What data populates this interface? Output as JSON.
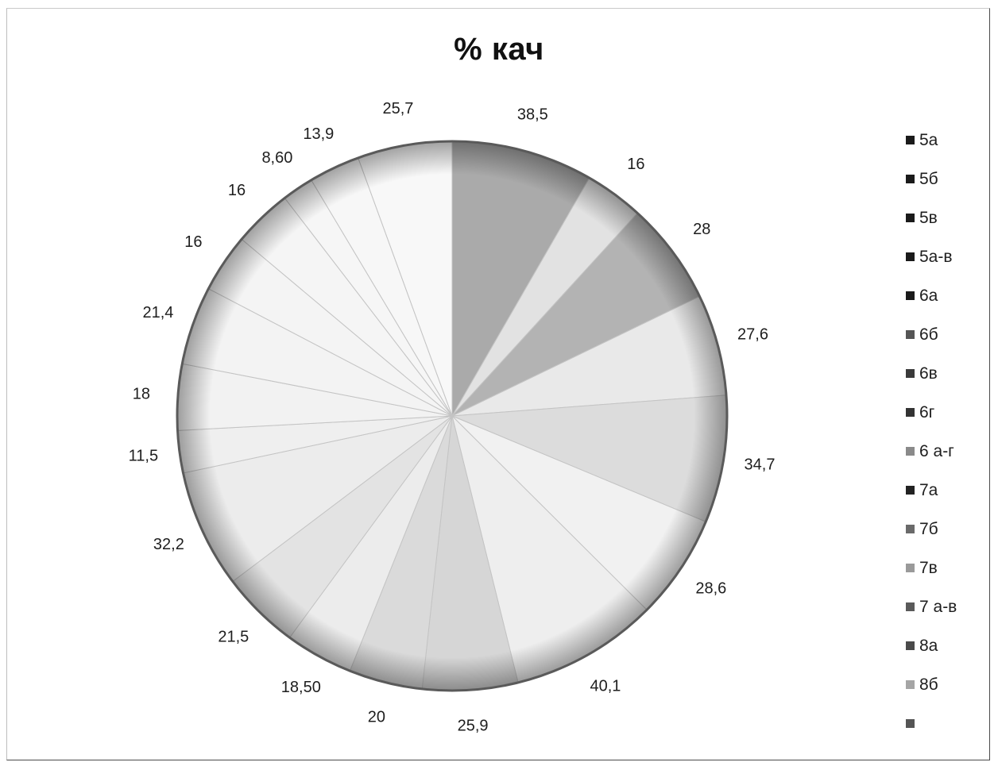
{
  "chart_data": {
    "type": "pie",
    "title": "% кач",
    "start_angle_deg": 0,
    "direction": "clockwise",
    "legend_position": "right",
    "slices": [
      {
        "legend": "5а",
        "label": "38,5",
        "value": 38.5,
        "color": "#aaaaaa"
      },
      {
        "legend": "5б",
        "label": "16",
        "value": 16,
        "color": "#e2e2e2"
      },
      {
        "legend": "5в",
        "label": "28",
        "value": 28,
        "color": "#b3b3b3"
      },
      {
        "legend": "5а-в",
        "label": "27,6",
        "value": 27.6,
        "color": "#e9e9e9"
      },
      {
        "legend": "6а",
        "label": "34,7",
        "value": 34.7,
        "color": "#dcdcdc"
      },
      {
        "legend": "6б",
        "label": "28,6",
        "value": 28.6,
        "color": "#f1f1f1"
      },
      {
        "legend": "6в",
        "label": "40,1",
        "value": 40.1,
        "color": "#eeeeee"
      },
      {
        "legend": "6г",
        "label": "25,9",
        "value": 25.9,
        "color": "#d6d6d6"
      },
      {
        "legend": "6 а-г",
        "label": "20",
        "value": 20,
        "color": "#dadada"
      },
      {
        "legend": "7а",
        "label": "18,50",
        "value": 18.5,
        "color": "#ececec"
      },
      {
        "legend": "7б",
        "label": "21,5",
        "value": 21.5,
        "color": "#e3e3e3"
      },
      {
        "legend": "7в",
        "label": "32,2",
        "value": 32.2,
        "color": "#ececec"
      },
      {
        "legend": "7 а-в",
        "label": "11,5",
        "value": 11.5,
        "color": "#efefef"
      },
      {
        "legend": "8а",
        "label": "18",
        "value": 18,
        "color": "#f2f2f2"
      },
      {
        "legend": "8б",
        "label": "21,4",
        "value": 21.4,
        "color": "#f3f3f3"
      },
      {
        "legend": "",
        "label": "16",
        "value": 16,
        "color": "#f4f4f4"
      },
      {
        "legend": "",
        "label": "16",
        "value": 16,
        "color": "#f5f5f5"
      },
      {
        "legend": "",
        "label": "8,60",
        "value": 8.6,
        "color": "#f6f6f6"
      },
      {
        "legend": "",
        "label": "13,9",
        "value": 13.9,
        "color": "#f7f7f7"
      },
      {
        "legend": "",
        "label": "25,7",
        "value": 25.7,
        "color": "#f8f8f8"
      }
    ],
    "legend_swatch_colors": [
      "#1a1a1a",
      "#1a1a1a",
      "#1a1a1a",
      "#1a1a1a",
      "#1a1a1a",
      "#555555",
      "#3a3a3a",
      "#333333",
      "#8a8a8a",
      "#222222",
      "#6a6a6a",
      "#9a9a9a",
      "#5a5a5a",
      "#4a4a4a",
      "#a5a5a5",
      "#555555"
    ]
  }
}
